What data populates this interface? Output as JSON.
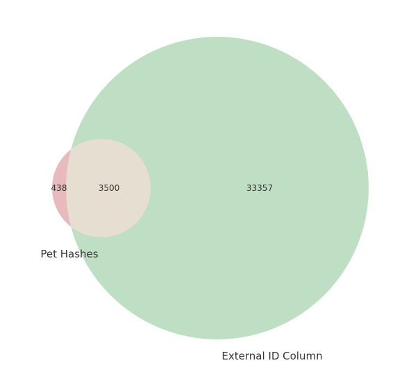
{
  "chart_data": {
    "type": "venn",
    "sets": [
      {
        "name": "Pet Hashes",
        "color": "#d98a91"
      },
      {
        "name": "External ID Column",
        "color": "#a9d4b1"
      }
    ],
    "regions": {
      "only_a": 438,
      "intersection": 3500,
      "only_b": 33357
    },
    "intersection_color": "#e6ded0"
  }
}
